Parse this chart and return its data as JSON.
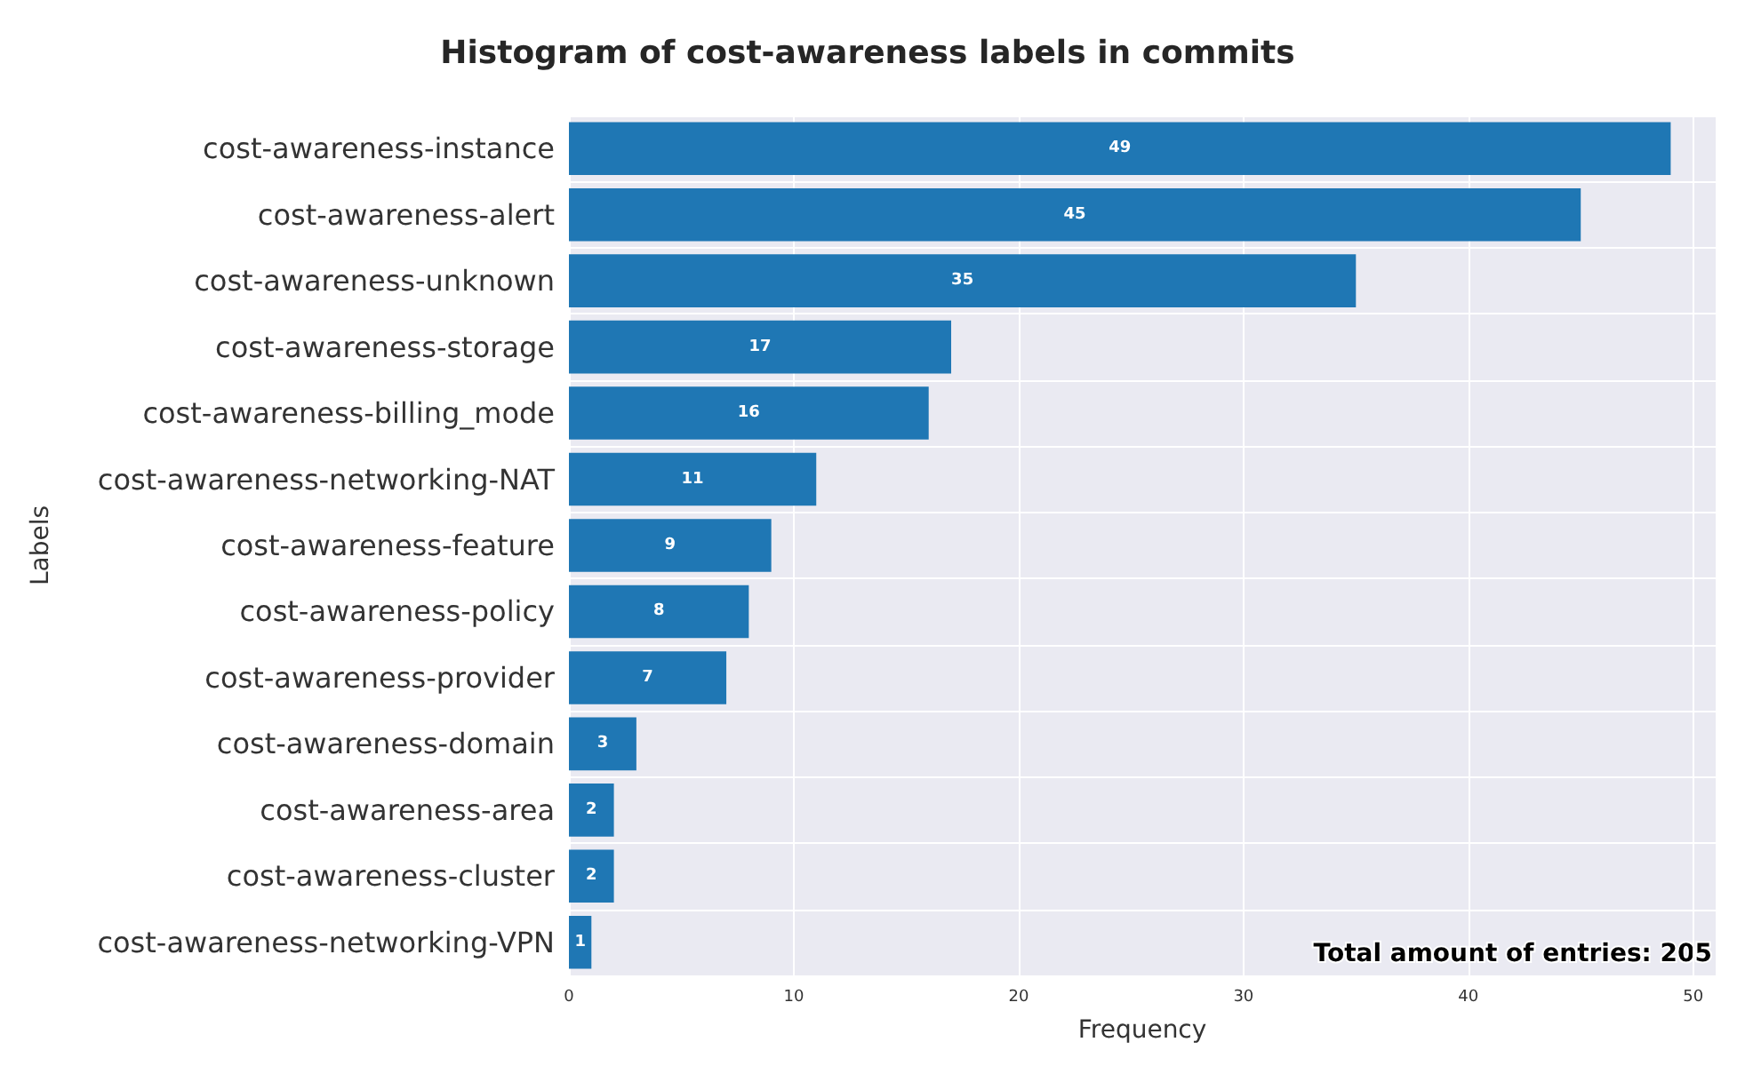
{
  "chart_data": {
    "type": "bar",
    "orientation": "horizontal",
    "title": "Histogram of cost-awareness labels in commits",
    "xlabel": "Frequency",
    "ylabel": "Labels",
    "categories": [
      "cost-awareness-instance",
      "cost-awareness-alert",
      "cost-awareness-unknown",
      "cost-awareness-storage",
      "cost-awareness-billing_mode",
      "cost-awareness-networking-NAT",
      "cost-awareness-feature",
      "cost-awareness-policy",
      "cost-awareness-provider",
      "cost-awareness-domain",
      "cost-awareness-area",
      "cost-awareness-cluster",
      "cost-awareness-networking-VPN"
    ],
    "values": [
      49,
      45,
      35,
      17,
      16,
      11,
      9,
      8,
      7,
      3,
      2,
      2,
      1
    ],
    "color": "#1f77b4",
    "xlim": [
      0,
      51
    ],
    "xticks": [
      0,
      10,
      20,
      30,
      40,
      50
    ],
    "grid": true,
    "data_labels": true,
    "annotations": [
      "Total amount of entries: 205"
    ]
  }
}
